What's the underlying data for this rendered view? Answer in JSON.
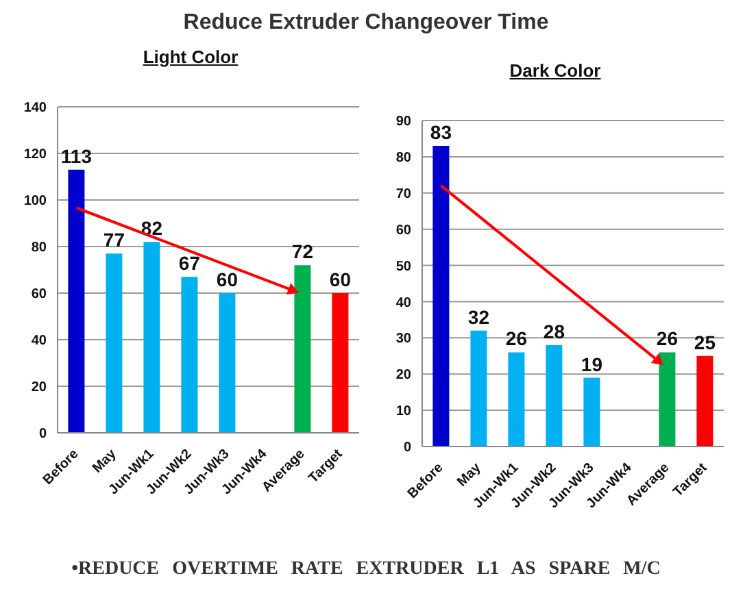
{
  "chart_data": [
    {
      "type": "bar",
      "title": "Reduce Extruder Changeover Time",
      "subtitle": "Light Color",
      "categories": [
        "Before",
        "May",
        "Jun-Wk1",
        "Jun-Wk2",
        "Jun-Wk3",
        "Jun-Wk4",
        "Average",
        "Target"
      ],
      "values": [
        113,
        77,
        82,
        67,
        60,
        null,
        72,
        60
      ],
      "colors": [
        "#0000cc",
        "#00b0f0",
        "#00b0f0",
        "#00b0f0",
        "#00b0f0",
        "#00b0f0",
        "#00b050",
        "#ff0000"
      ],
      "ylim": [
        0,
        140
      ],
      "yticks": [
        0,
        20,
        40,
        60,
        80,
        100,
        120,
        140
      ],
      "grid": "y",
      "data_labels": true,
      "annotations": [
        "•REDUCE OVERTIME RATE EXTRUDER L1 AS SPARE M/C"
      ]
    },
    {
      "type": "bar",
      "title": "Dark Color",
      "categories": [
        "Before",
        "May",
        "Jun-Wk1",
        "Jun-Wk2",
        "Jun-Wk3",
        "Jun-Wk4",
        "Average",
        "Target"
      ],
      "values": [
        83,
        32,
        26,
        28,
        19,
        null,
        26,
        25
      ],
      "colors": [
        "#0000cc",
        "#00b0f0",
        "#00b0f0",
        "#00b0f0",
        "#00b0f0",
        "#00b0f0",
        "#00b050",
        "#ff0000"
      ],
      "ylim": [
        0,
        90
      ],
      "yticks": [
        0,
        10,
        20,
        30,
        40,
        50,
        60,
        70,
        80,
        90
      ],
      "grid": "y",
      "data_labels": true
    }
  ]
}
